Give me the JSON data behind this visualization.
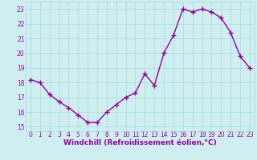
{
  "x": [
    0,
    1,
    2,
    3,
    4,
    5,
    6,
    7,
    8,
    9,
    10,
    11,
    12,
    13,
    14,
    15,
    16,
    17,
    18,
    19,
    20,
    21,
    22,
    23
  ],
  "y": [
    18.2,
    18.0,
    17.2,
    16.7,
    16.3,
    15.8,
    15.3,
    15.3,
    16.0,
    16.5,
    17.0,
    17.3,
    18.6,
    17.8,
    20.0,
    21.2,
    23.0,
    22.8,
    23.0,
    22.8,
    22.4,
    21.4,
    19.8,
    19.0
  ],
  "line_color": "#990099",
  "marker": "+",
  "marker_size": 4,
  "linewidth": 1.0,
  "bg_color": "#ceeef0",
  "grid_color": "#aadddd",
  "xlabel": "Windchill (Refroidissement éolien,°C)",
  "xlim": [
    -0.5,
    23.5
  ],
  "ylim": [
    14.7,
    23.5
  ],
  "yticks": [
    15,
    16,
    17,
    18,
    19,
    20,
    21,
    22,
    23
  ],
  "xticks": [
    0,
    1,
    2,
    3,
    4,
    5,
    6,
    7,
    8,
    9,
    10,
    11,
    12,
    13,
    14,
    15,
    16,
    17,
    18,
    19,
    20,
    21,
    22,
    23
  ],
  "tick_label_fontsize": 5.5,
  "xlabel_fontsize": 6.5,
  "line_color_spine": "#aadddd",
  "tick_color": "#990099"
}
